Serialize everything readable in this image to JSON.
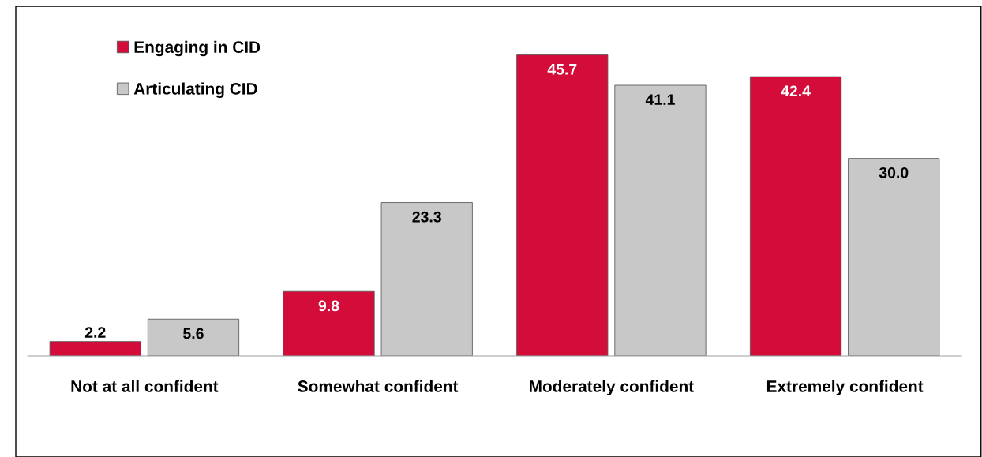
{
  "chart_data": {
    "type": "bar",
    "categories": [
      "Not at all confident",
      "Somewhat confident",
      "Moderately confident",
      "Extremely confident"
    ],
    "series": [
      {
        "name": "Engaging in CID",
        "color": "#d40c3a",
        "values": [
          2.2,
          9.8,
          45.7,
          42.4
        ],
        "value_labels": [
          "2.2",
          "9.8",
          "45.7",
          "42.4"
        ]
      },
      {
        "name": "Articulating CID",
        "color": "#c8c8c8",
        "values": [
          5.6,
          23.3,
          41.1,
          30.0
        ],
        "value_labels": [
          "5.6",
          "23.3",
          "41.1",
          "30.0"
        ]
      }
    ],
    "legend": "top left",
    "grid": false
  }
}
